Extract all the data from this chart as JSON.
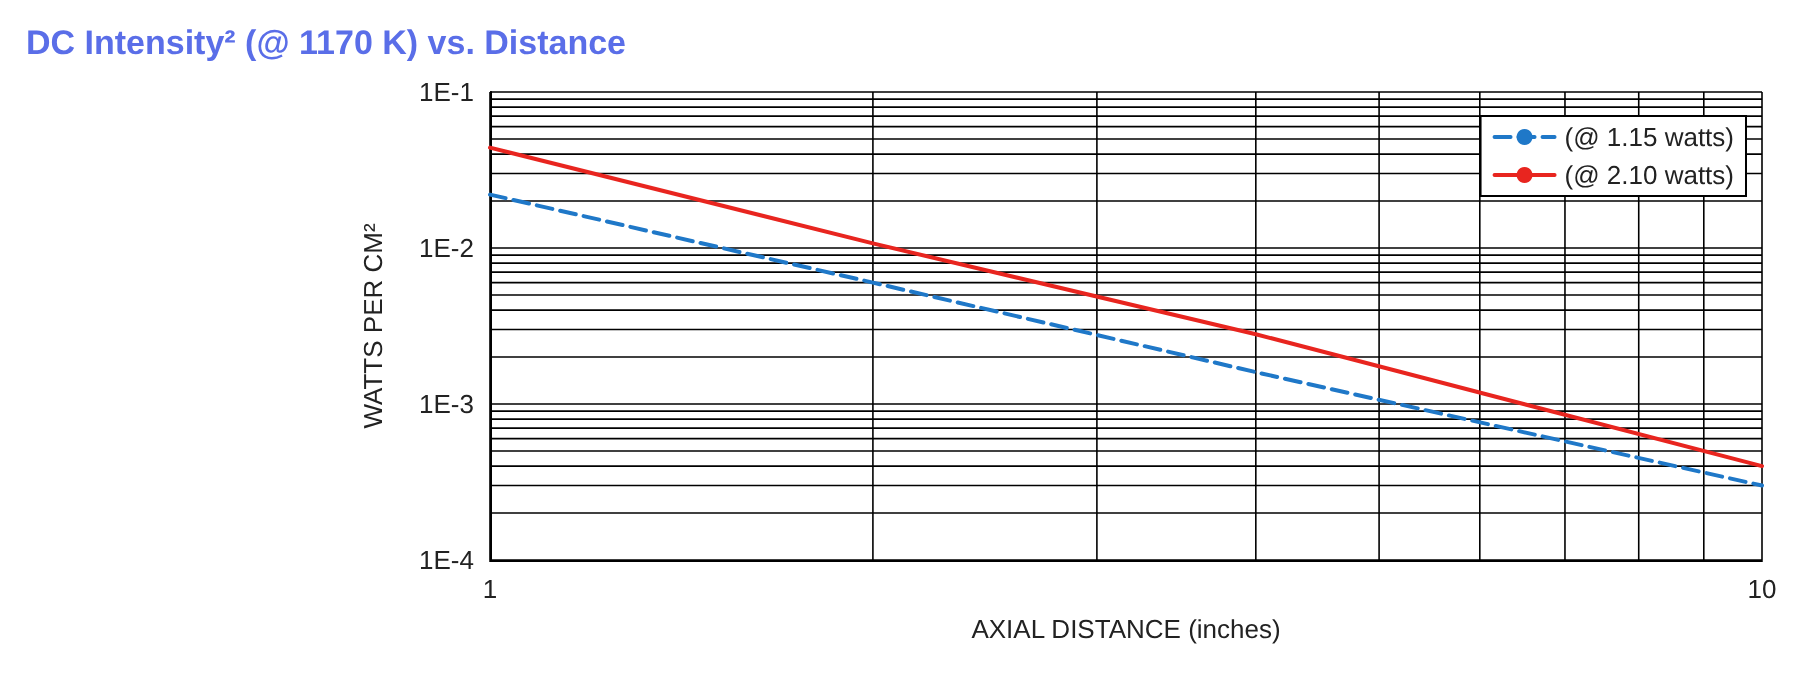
{
  "chart_data": {
    "type": "line",
    "title": "DC Intensity² (@ 1170 K) vs. Distance",
    "xlabel": "AXIAL DISTANCE (inches)",
    "ylabel": "WATTS PER CM²",
    "log": "xy",
    "grid": true,
    "legend": "top right",
    "marker": "none",
    "xlim": [
      1,
      10
    ],
    "xticks": [
      1,
      {
        "value": 2,
        "label": null
      },
      {
        "value": 3,
        "label": null
      },
      {
        "value": 4,
        "label": null
      },
      {
        "value": 5,
        "label": null
      },
      {
        "value": 6,
        "label": null
      },
      {
        "value": 7,
        "label": null
      },
      {
        "value": 8,
        "label": null
      },
      {
        "value": 9,
        "label": null
      },
      10
    ],
    "ylim": [
      0.0001,
      0.1
    ],
    "yticks": [
      {
        "value": 0.0001,
        "label": "1E-4"
      },
      {
        "value": 0.0002,
        "label": null
      },
      {
        "value": 0.0003,
        "label": null
      },
      {
        "value": 0.0004,
        "label": null
      },
      {
        "value": 0.0005,
        "label": null
      },
      {
        "value": 0.0006,
        "label": null
      },
      {
        "value": 0.0007,
        "label": null
      },
      {
        "value": 0.0008,
        "label": null
      },
      {
        "value": 0.0009,
        "label": null
      },
      {
        "value": 0.001,
        "label": "1E-3"
      },
      {
        "value": 0.002,
        "label": null
      },
      {
        "value": 0.003,
        "label": null
      },
      {
        "value": 0.004,
        "label": null
      },
      {
        "value": 0.005,
        "label": null
      },
      {
        "value": 0.006,
        "label": null
      },
      {
        "value": 0.007,
        "label": null
      },
      {
        "value": 0.008,
        "label": null
      },
      {
        "value": 0.009,
        "label": null
      },
      {
        "value": 0.01,
        "label": "1E-2"
      },
      {
        "value": 0.02,
        "label": null
      },
      {
        "value": 0.03,
        "label": null
      },
      {
        "value": 0.04,
        "label": null
      },
      {
        "value": 0.05,
        "label": null
      },
      {
        "value": 0.06,
        "label": null
      },
      {
        "value": 0.07,
        "label": null
      },
      {
        "value": 0.08,
        "label": null
      },
      {
        "value": 0.09,
        "label": null
      },
      {
        "value": 0.1,
        "label": "1E-1"
      }
    ],
    "x": [
      1,
      2,
      4,
      10
    ],
    "series": [
      {
        "name": "(@ 1.15 watts)",
        "color": "#1f78c8",
        "line_style": "dashed",
        "values": [
          0.022,
          0.006,
          0.0016,
          0.0003
        ]
      },
      {
        "name": "(@ 2.10 watts)",
        "color": "#e8251f",
        "line_style": "solid",
        "values": [
          0.044,
          0.0107,
          0.0028,
          0.0004
        ]
      }
    ]
  }
}
